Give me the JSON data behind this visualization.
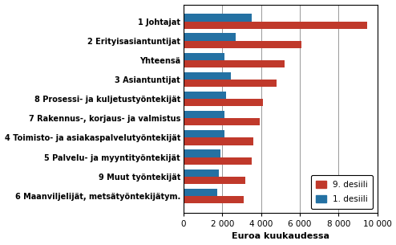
{
  "categories": [
    "1 Johtajat",
    "2 Erityisasiantuntijat",
    "Yhteensä",
    "3 Asiantuntijat",
    "8 Prosessi- ja kuljetustyöntekijät",
    "7 Rakennus-, korjaus- ja valmistus",
    "4 Toimisto- ja asiakaspalvelutyöntekijät",
    "5 Palvelu- ja myyntityöntekijät",
    "9 Muut työntekijät",
    "6 Maanviljelijät, metsätyöntekijätym."
  ],
  "desii9": [
    9500,
    6100,
    5200,
    4800,
    4100,
    3950,
    3600,
    3500,
    3200,
    3100
  ],
  "desii1": [
    3500,
    2700,
    2100,
    2450,
    2200,
    2100,
    2100,
    1900,
    1800,
    1750
  ],
  "color9": "#C0392B",
  "color1": "#2471A3",
  "xlabel": "Euroa kuukaudessa",
  "xlim": [
    0,
    10000
  ],
  "xticks": [
    0,
    2000,
    4000,
    6000,
    8000,
    10000
  ],
  "xtick_labels": [
    "0",
    "2 000",
    "4 000",
    "6 000",
    "8 000",
    "10 000"
  ],
  "legend_label9": "9. desiili",
  "legend_label1": "1. desiili",
  "bar_height": 0.38,
  "figsize": [
    4.94,
    3.05
  ],
  "dpi": 100,
  "bg_color": "#FFFFFF",
  "label_fontsize": 7.0,
  "xlabel_fontsize": 8.0,
  "xtick_fontsize": 7.5
}
